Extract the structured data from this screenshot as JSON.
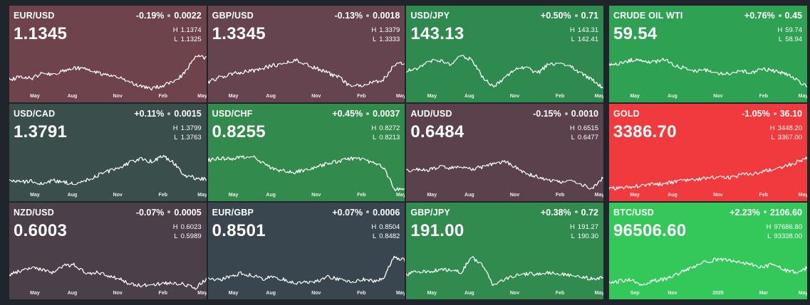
{
  "colors": {
    "page_bg": "#20252c",
    "tile_colors": {
      "EUR/USD": "#6e434c",
      "GBP/USD": "#65434f",
      "USD/JPY": "#2f8a4f",
      "CRUDE OIL WTI": "#2fa152",
      "USD/CAD": "#3a4e4c",
      "USD/CHF": "#328a4c",
      "AUD/USD": "#5a414c",
      "GOLD": "#f03a3d",
      "NZD/USD": "#4b3f4a",
      "EUR/GBP": "#3a464f",
      "GBP/JPY": "#318b4e",
      "BTC/USD": "#34c85a"
    }
  },
  "tiles": [
    {
      "symbol": "EUR/USD",
      "change_pct": "-0.19%",
      "change_abs": "0.0022",
      "price": "1.1345",
      "high_label": "H",
      "high": "1.1374",
      "low_label": "L",
      "low": "1.1325",
      "axis": [
        "May",
        "Aug",
        "Nov",
        "Feb",
        "May"
      ]
    },
    {
      "symbol": "GBP/USD",
      "change_pct": "-0.13%",
      "change_abs": "0.0018",
      "price": "1.3345",
      "high_label": "H",
      "high": "1.3379",
      "low_label": "L",
      "low": "1.3333",
      "axis": [
        "May",
        "Aug",
        "Nov",
        "Feb",
        "May"
      ]
    },
    {
      "symbol": "USD/JPY",
      "change_pct": "+0.50%",
      "change_abs": "0.71",
      "price": "143.13",
      "high_label": "H",
      "high": "143.31",
      "low_label": "L",
      "low": "142.41",
      "axis": [
        "May",
        "Aug",
        "Nov",
        "Feb",
        "May"
      ]
    },
    {
      "symbol": "USD/CAD",
      "change_pct": "+0.11%",
      "change_abs": "0.0015",
      "price": "1.3791",
      "high_label": "H",
      "high": "1.3799",
      "low_label": "L",
      "low": "1.3763",
      "axis": [
        "May",
        "Aug",
        "Nov",
        "Feb",
        "May"
      ]
    },
    {
      "symbol": "USD/CHF",
      "change_pct": "+0.45%",
      "change_abs": "0.0037",
      "price": "0.8255",
      "high_label": "H",
      "high": "0.8272",
      "low_label": "L",
      "low": "0.8213",
      "axis": [
        "May",
        "Aug",
        "Nov",
        "Feb",
        "May"
      ]
    },
    {
      "symbol": "AUD/USD",
      "change_pct": "-0.15%",
      "change_abs": "0.0010",
      "price": "0.6484",
      "high_label": "H",
      "high": "0.6515",
      "low_label": "L",
      "low": "0.6477",
      "axis": [
        "May",
        "Aug",
        "Nov",
        "Feb",
        "May"
      ]
    },
    {
      "symbol": "NZD/USD",
      "change_pct": "-0.07%",
      "change_abs": "0.0005",
      "price": "0.6003",
      "high_label": "H",
      "high": "0.6023",
      "low_label": "L",
      "low": "0.5989",
      "axis": [
        "May",
        "Aug",
        "Nov",
        "Feb",
        "May"
      ]
    },
    {
      "symbol": "EUR/GBP",
      "change_pct": "+0.07%",
      "change_abs": "0.0006",
      "price": "0.8501",
      "high_label": "H",
      "high": "0.8504",
      "low_label": "L",
      "low": "0.8482",
      "axis": [
        "May",
        "Aug",
        "Nov",
        "Feb",
        "May"
      ]
    },
    {
      "symbol": "GBP/JPY",
      "change_pct": "+0.38%",
      "change_abs": "0.72",
      "price": "191.00",
      "high_label": "H",
      "high": "191.27",
      "low_label": "L",
      "low": "190.30",
      "axis": [
        "May",
        "Aug",
        "Nov",
        "Feb",
        "May"
      ]
    },
    {
      "symbol": "CRUDE OIL WTI",
      "change_pct": "+0.76%",
      "change_abs": "0.45",
      "price": "59.54",
      "high_label": "H",
      "high": "59.74",
      "low_label": "L",
      "low": "58.94",
      "axis": [
        "May",
        "Aug",
        "Nov",
        "Feb",
        "May"
      ]
    },
    {
      "symbol": "GOLD",
      "change_pct": "-1.05%",
      "change_abs": "36.10",
      "price": "3386.70",
      "high_label": "H",
      "high": "3448.20",
      "low_label": "L",
      "low": "3367.00",
      "axis": [
        "May",
        "Aug",
        "Nov",
        "Feb",
        "May"
      ]
    },
    {
      "symbol": "BTC/USD",
      "change_pct": "+2.23%",
      "change_abs": "2106.60",
      "price": "96506.60",
      "high_label": "H",
      "high": "97686.80",
      "low_label": "L",
      "low": "93338.00",
      "axis": [
        "Sep",
        "Nov",
        "2025",
        "Mar",
        "May"
      ]
    }
  ]
}
